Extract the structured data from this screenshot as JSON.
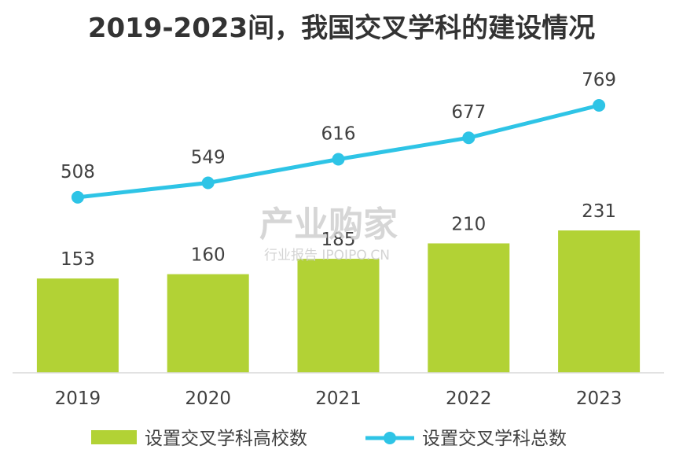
{
  "page": {
    "title": "2019-2023间，我国交叉学科的建设情况"
  },
  "watermark": {
    "brand": "产业购家",
    "tagline": "行业报告 IPOIPO.CN"
  },
  "colors": {
    "bar": "#b2d235",
    "line": "#2ec4e6",
    "axis": "#d9d9d9",
    "text": "#404040"
  },
  "chart_data": {
    "type": "bar",
    "title": "2019-2023间，我国交叉学科的建设情况",
    "categories": [
      "2019",
      "2020",
      "2021",
      "2022",
      "2023"
    ],
    "series": [
      {
        "name": "设置交叉学科高校数",
        "type": "bar",
        "values": [
          153,
          160,
          185,
          210,
          231
        ]
      },
      {
        "name": "设置交叉学科总数",
        "type": "line",
        "values": [
          508,
          549,
          616,
          677,
          769
        ]
      }
    ],
    "legend_position": "bottom",
    "grid": false
  }
}
